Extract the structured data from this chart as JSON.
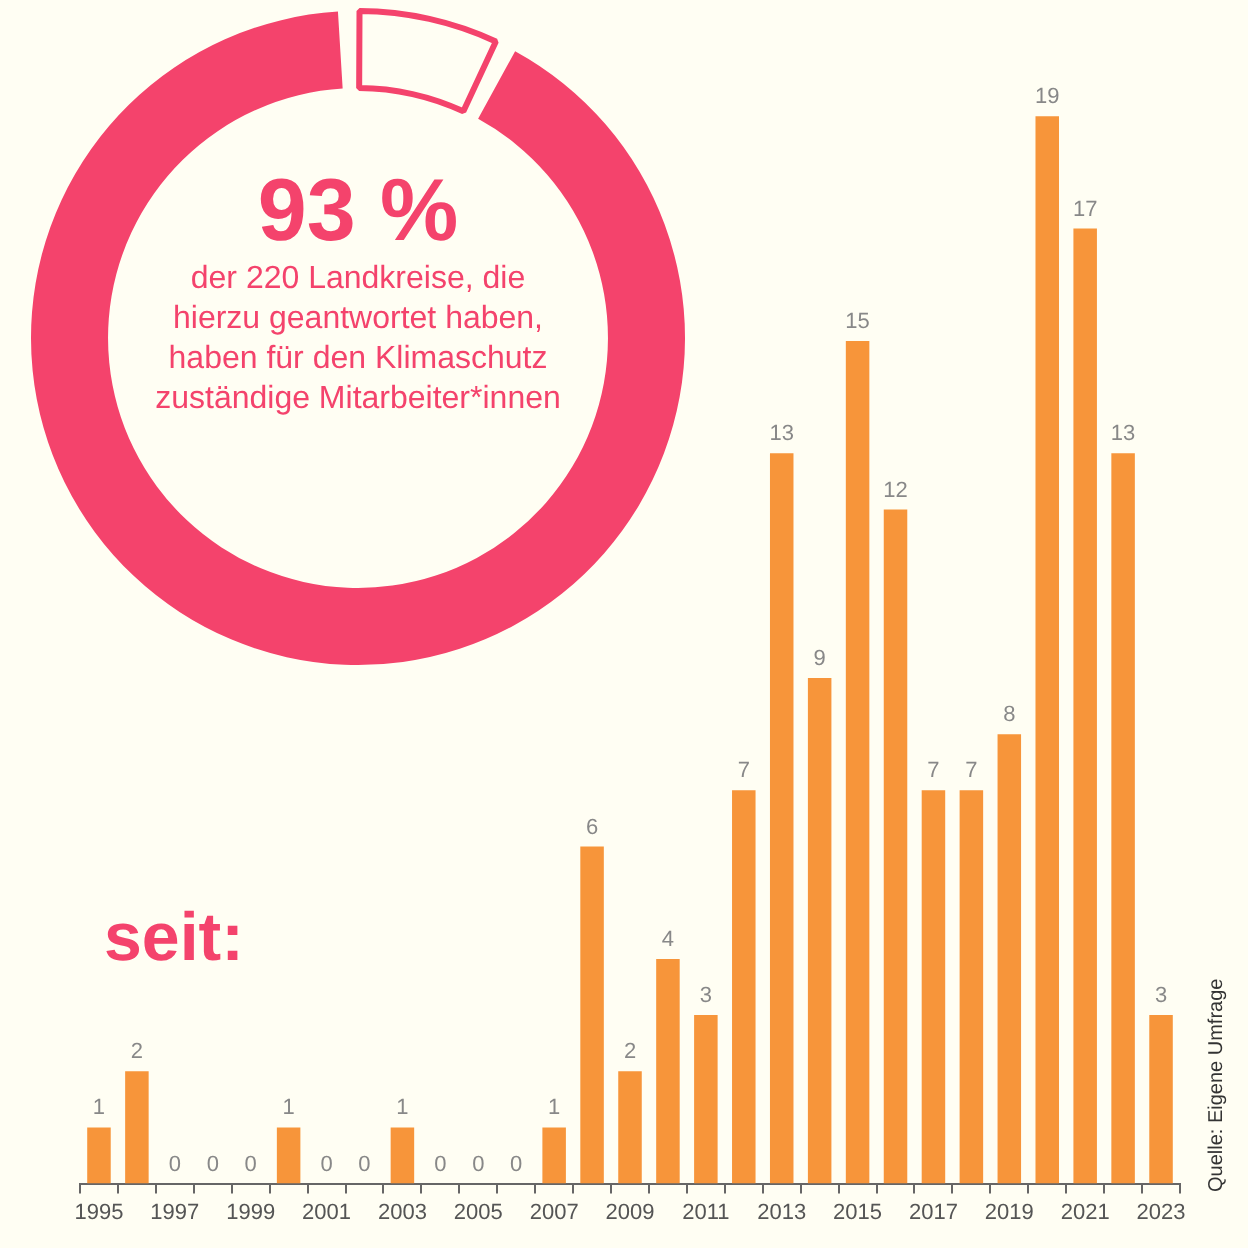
{
  "chart_data": [
    {
      "type": "donut",
      "title": "93 %",
      "subtitle": "der 220 Landkreise, die hierzu geantwortet haben, haben für den Klimaschutz zuständige Mitarbeiter*innen",
      "categories": [
        null,
        null
      ],
      "values": [
        7,
        93
      ],
      "colors": [
        "#fffef3",
        "#f4436c"
      ],
      "legend": false
    },
    {
      "type": "bar",
      "title": "seit:",
      "categories": [
        "1995",
        null,
        "1997",
        null,
        "1999",
        null,
        "2001",
        null,
        "2003",
        null,
        "2005",
        null,
        "2007",
        null,
        "2009",
        null,
        "2011",
        null,
        "2013",
        null,
        "2015",
        null,
        "2017",
        null,
        "2019",
        null,
        "2021",
        null,
        "2023"
      ],
      "values": [
        1,
        2,
        0,
        0,
        0,
        1,
        0,
        0,
        1,
        0,
        0,
        0,
        1,
        6,
        2,
        4,
        3,
        7,
        13,
        9,
        15,
        12,
        7,
        7,
        8,
        19,
        17,
        13,
        3
      ],
      "color": "#f7953a",
      "data_labels": true,
      "legend": false,
      "grid": false,
      "annotations": [
        "Quelle: Eigene Umfrage"
      ]
    }
  ]
}
